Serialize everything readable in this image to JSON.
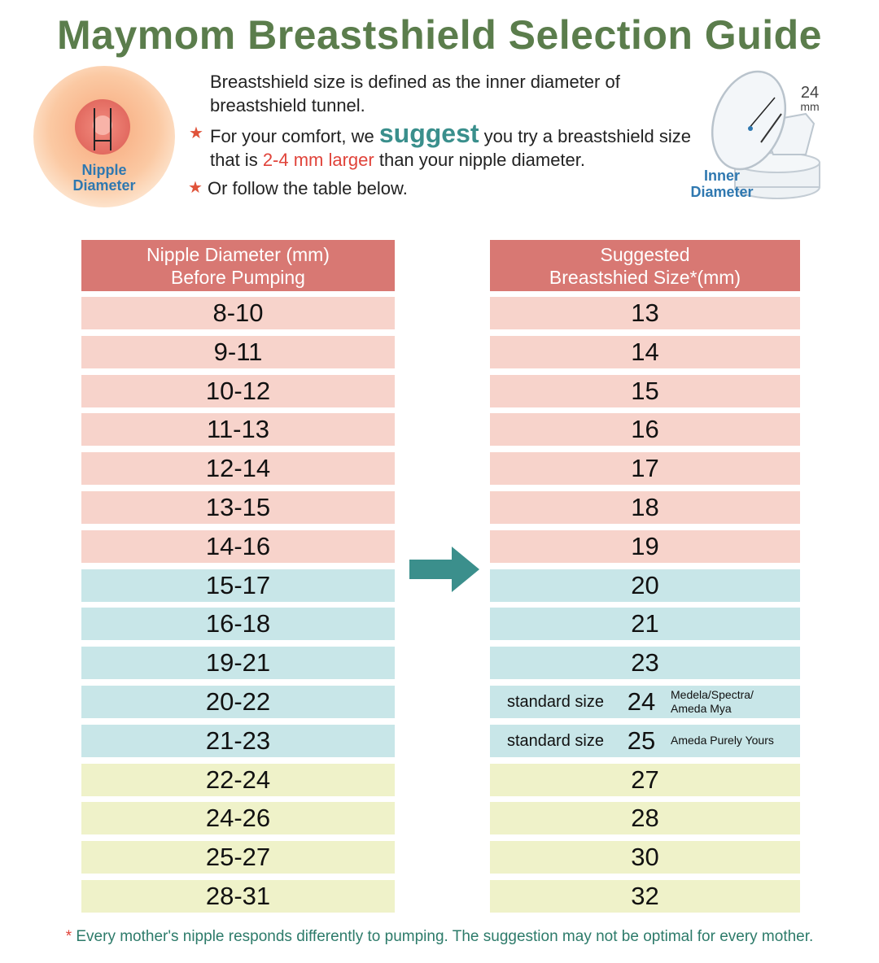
{
  "header": {
    "title": "Maymom Breastshield Selection Guide"
  },
  "nipple_diagram": {
    "label_lines": [
      "Nipple",
      "Diameter"
    ]
  },
  "shield_diagram": {
    "size": "24",
    "unit": "mm",
    "label_lines": [
      "Inner",
      "Diameter"
    ]
  },
  "intro": {
    "definition": "Breastshield size is defined as the inner diameter of breastshield tunnel.",
    "suggestion": [
      "For your comfort, we ",
      "suggest",
      " you try a breastshield size that is ",
      "2-4 mm larger",
      " than your nipple diameter."
    ],
    "follow": "Or follow the table below."
  },
  "table": {
    "headers": [
      [
        "Nipple Diameter (mm)",
        "Before Pumping"
      ],
      [
        "Suggested",
        "Breastshied Size*(mm)"
      ]
    ],
    "groups": [
      {
        "color": "#f7d3cb",
        "rows": [
          {
            "nipple": "8-10",
            "size": "13"
          },
          {
            "nipple": "9-11",
            "size": "14"
          },
          {
            "nipple": "10-12",
            "size": "15"
          },
          {
            "nipple": "11-13",
            "size": "16"
          },
          {
            "nipple": "12-14",
            "size": "17"
          },
          {
            "nipple": "13-15",
            "size": "18"
          },
          {
            "nipple": "14-16",
            "size": "19"
          }
        ]
      },
      {
        "color": "#c8e6e8",
        "rows": [
          {
            "nipple": "15-17",
            "size": "20"
          },
          {
            "nipple": "16-18",
            "size": "21"
          },
          {
            "nipple": "19-21",
            "size": "23"
          },
          {
            "nipple": "20-22",
            "size": "24",
            "label": "standard size",
            "note": [
              "Medela/Spectra/",
              "Ameda Mya"
            ]
          },
          {
            "nipple": "21-23",
            "size": "25",
            "label": "standard size",
            "note": [
              "Ameda Purely Yours"
            ]
          }
        ]
      },
      {
        "color": "#eff2c9",
        "rows": [
          {
            "nipple": "22-24",
            "size": "27"
          },
          {
            "nipple": "24-26",
            "size": "28"
          },
          {
            "nipple": "25-27",
            "size": "30"
          },
          {
            "nipple": "28-31",
            "size": "32"
          }
        ]
      }
    ]
  },
  "footnote": [
    "*",
    " Every mother's nipple responds differently to pumping. The suggestion may not be optimal for every mother."
  ]
}
